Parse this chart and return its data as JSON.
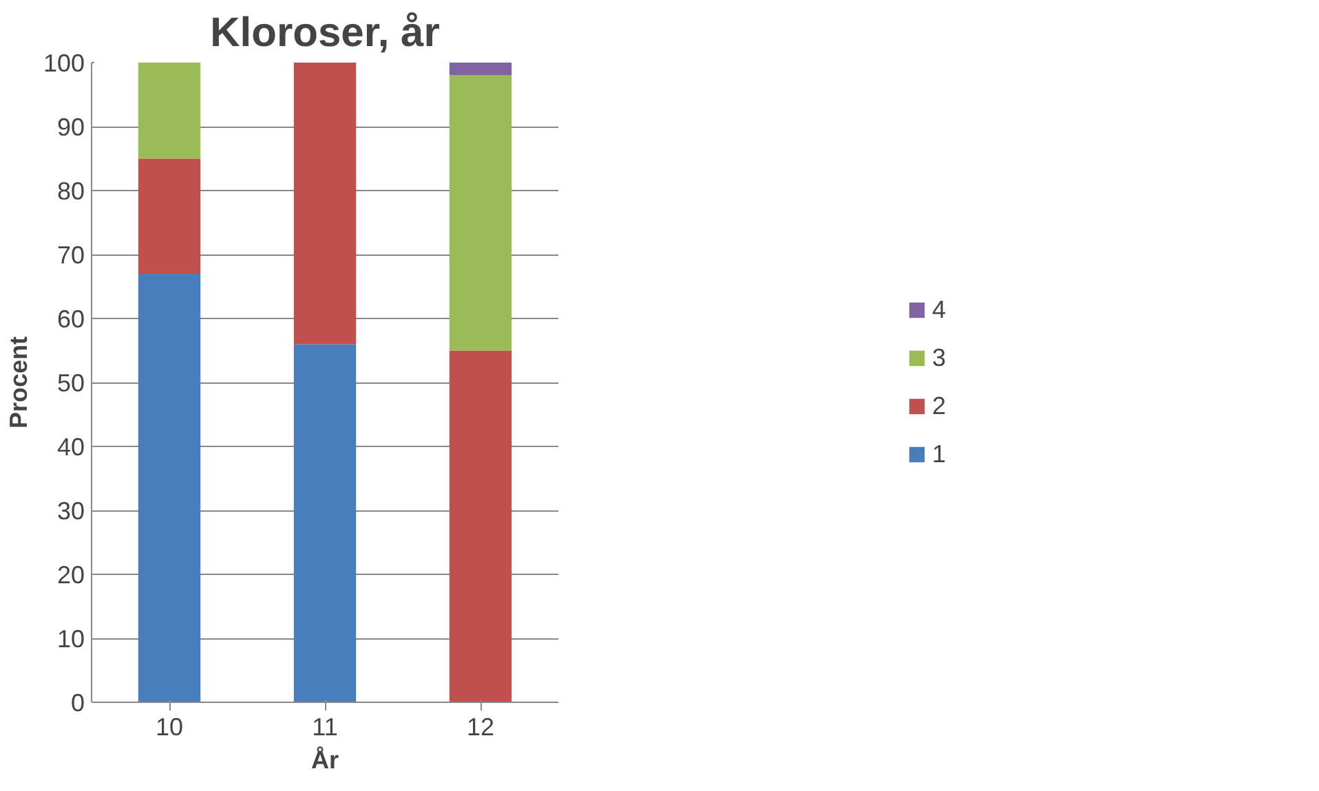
{
  "chart_data": {
    "type": "bar",
    "title": "Kloroser, år",
    "xlabel": "År",
    "ylabel": "Procent",
    "categories": [
      "10",
      "11",
      "12"
    ],
    "stacked": true,
    "series": [
      {
        "name": "1",
        "color": "#4a7ebb",
        "values": [
          67,
          56,
          0
        ]
      },
      {
        "name": "2",
        "color": "#c0504d",
        "values": [
          18,
          44,
          55
        ]
      },
      {
        "name": "3",
        "color": "#9bbb59",
        "values": [
          15,
          0,
          43
        ]
      },
      {
        "name": "4",
        "color": "#8064a2",
        "values": [
          0,
          0,
          2
        ]
      }
    ],
    "ylim": [
      0,
      100
    ],
    "yticks": [
      0,
      10,
      20,
      30,
      40,
      50,
      60,
      70,
      80,
      90,
      100
    ],
    "grid": "y",
    "legend": "right"
  }
}
